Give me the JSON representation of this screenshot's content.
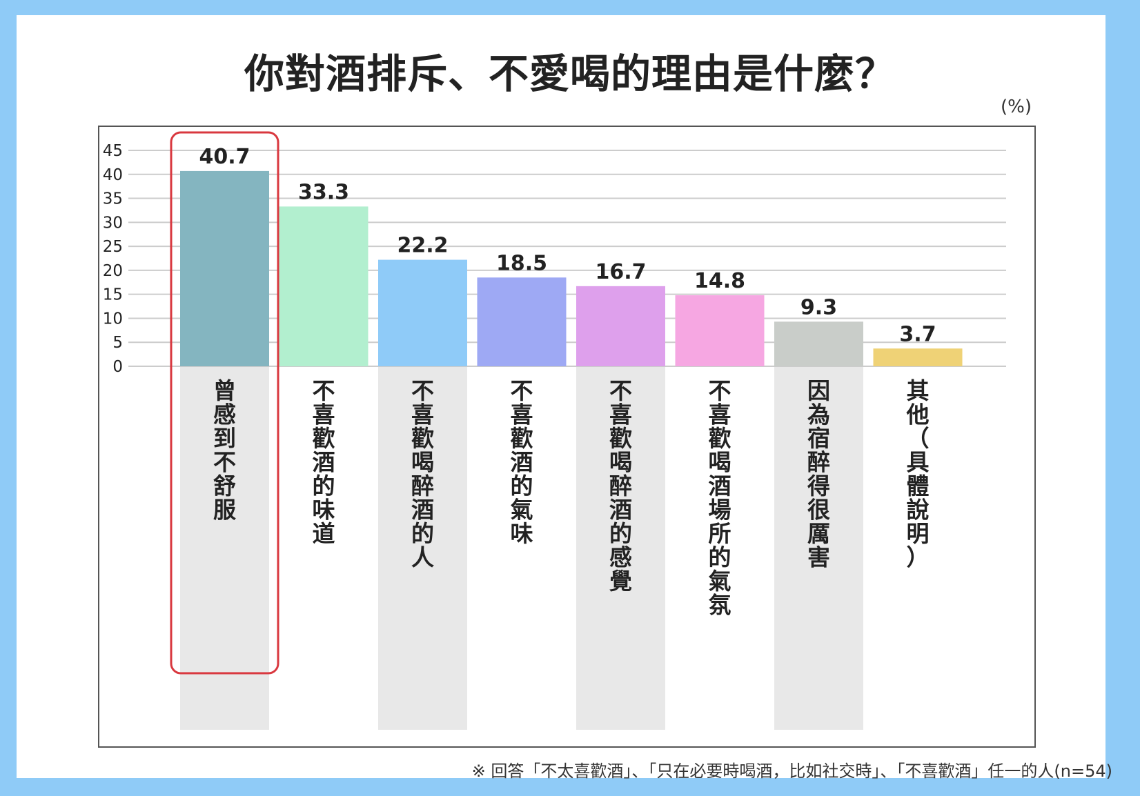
{
  "chart_data": {
    "type": "bar",
    "title": "你對酒排斥、不愛喝的理由是什麼？",
    "unit": "(%)",
    "categories": [
      "曾感到不舒服",
      "不喜歡酒的味道",
      "不喜歡喝醉酒的人",
      "不喜歡酒的氣味",
      "不喜歡喝醉酒的感覺",
      "不喜歡喝酒場所的氣氛",
      "因為宿醉得很厲害",
      "其他（具體說明）"
    ],
    "values": [
      40.7,
      33.3,
      22.2,
      18.5,
      16.7,
      14.8,
      9.3,
      3.7
    ],
    "value_labels": [
      "40.7",
      "33.3",
      "22.2",
      "18.5",
      "16.7",
      "14.8",
      "9.3",
      "3.7"
    ],
    "colors": [
      "#84b5c0",
      "#b2efcf",
      "#8fcbf8",
      "#9ea9f4",
      "#dea0ec",
      "#f6a7e2",
      "#c9cdc9",
      "#efd276"
    ],
    "ylim": [
      0,
      45
    ],
    "yticks": [
      0,
      5,
      10,
      15,
      20,
      25,
      30,
      35,
      40,
      45
    ],
    "grid": true,
    "highlight_index": 0,
    "highlight_color": "#d9383f",
    "xlabel": "",
    "ylabel": ""
  },
  "footnote": "※ 回答「不太喜歡酒」、「只在必要時喝酒，比如社交時」、「不喜歡酒」任一的人(n=54)",
  "colors": {
    "background": "#8fcbf7",
    "card": "#ffffff",
    "grid": "#cccccc",
    "stripe": "#e8e8e8"
  }
}
